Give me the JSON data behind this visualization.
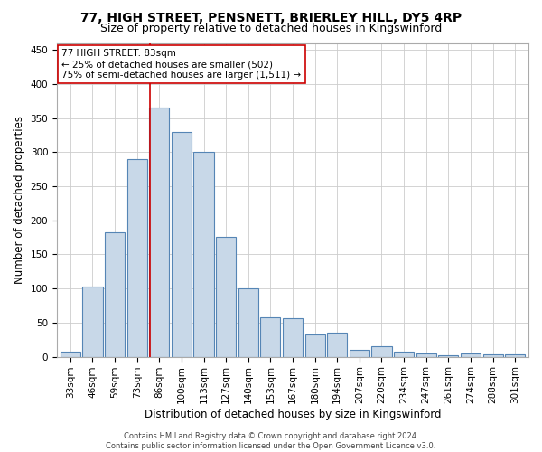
{
  "title1": "77, HIGH STREET, PENSNETT, BRIERLEY HILL, DY5 4RP",
  "title2": "Size of property relative to detached houses in Kingswinford",
  "xlabel": "Distribution of detached houses by size in Kingswinford",
  "ylabel": "Number of detached properties",
  "footnote": "Contains HM Land Registry data © Crown copyright and database right 2024.\nContains public sector information licensed under the Open Government Licence v3.0.",
  "categories": [
    "33sqm",
    "46sqm",
    "59sqm",
    "73sqm",
    "86sqm",
    "100sqm",
    "113sqm",
    "127sqm",
    "140sqm",
    "153sqm",
    "167sqm",
    "180sqm",
    "194sqm",
    "207sqm",
    "220sqm",
    "234sqm",
    "247sqm",
    "261sqm",
    "274sqm",
    "288sqm",
    "301sqm"
  ],
  "values": [
    7,
    103,
    183,
    290,
    365,
    330,
    300,
    176,
    100,
    58,
    57,
    32,
    35,
    10,
    15,
    8,
    5,
    2,
    5,
    3,
    3
  ],
  "bar_color": "#c8d8e8",
  "bar_edge_color": "#5585b5",
  "annotation_line1": "77 HIGH STREET: 83sqm",
  "annotation_line2": "← 25% of detached houses are smaller (502)",
  "annotation_line3": "75% of semi-detached houses are larger (1,511) →",
  "vline_color": "#cc0000",
  "annotation_box_color": "#ffffff",
  "annotation_box_edge": "#cc0000",
  "ylim": [
    0,
    460
  ],
  "yticks": [
    0,
    50,
    100,
    150,
    200,
    250,
    300,
    350,
    400,
    450
  ],
  "grid_color": "#cccccc",
  "background_color": "#ffffff",
  "title1_fontsize": 10,
  "title2_fontsize": 9,
  "xlabel_fontsize": 8.5,
  "ylabel_fontsize": 8.5,
  "tick_fontsize": 7.5,
  "annot_fontsize": 7.5,
  "footnote_fontsize": 6
}
